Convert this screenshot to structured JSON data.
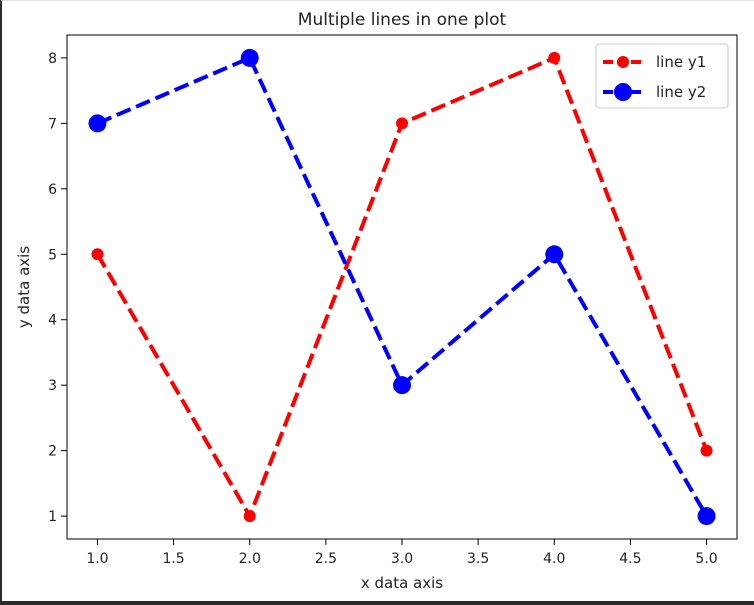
{
  "chart_data": {
    "type": "line",
    "title": "Multiple lines in one plot",
    "xlabel": "x data axis",
    "ylabel": "y data axis",
    "x": [
      1.0,
      2.0,
      3.0,
      4.0,
      5.0
    ],
    "xlim": [
      0.8,
      5.2
    ],
    "ylim": [
      0.65,
      8.35
    ],
    "xticks": [
      1.0,
      1.5,
      2.0,
      2.5,
      3.0,
      3.5,
      4.0,
      4.5,
      5.0
    ],
    "xtick_labels": [
      "1.0",
      "1.5",
      "2.0",
      "2.5",
      "3.0",
      "3.5",
      "4.0",
      "4.5",
      "5.0"
    ],
    "yticks": [
      1,
      2,
      3,
      4,
      5,
      6,
      7,
      8
    ],
    "ytick_labels": [
      "1",
      "2",
      "3",
      "4",
      "5",
      "6",
      "7",
      "8"
    ],
    "grid": false,
    "legend_position": "top-right",
    "series": [
      {
        "name": "line y1",
        "values": [
          5,
          1,
          7,
          8,
          2
        ],
        "color": "#ff0000",
        "linestyle": "dashed",
        "marker": "small-circle"
      },
      {
        "name": "line y2",
        "values": [
          7,
          8,
          3,
          5,
          1
        ],
        "color": "#0000ff",
        "linestyle": "dashed",
        "marker": "large-circle"
      }
    ]
  }
}
